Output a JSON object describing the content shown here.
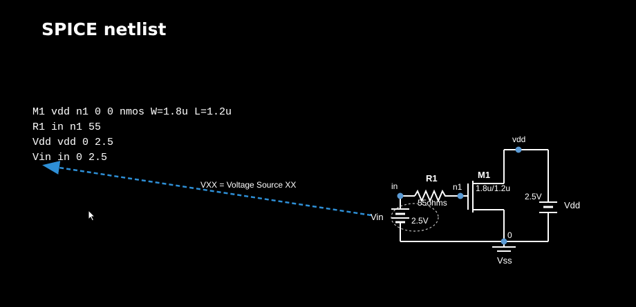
{
  "slide": {
    "title": "SPICE netlist"
  },
  "netlist": {
    "lines": [
      "M1 vdd n1 0 0 nmos W=1.8u L=1.2u",
      "R1 in n1 55",
      "Vdd vdd 0 2.5",
      "Vin in 0 2.5"
    ]
  },
  "annotation": {
    "label": "VXX = Voltage Source XX"
  },
  "circuit": {
    "node_in": "in",
    "node_n1": "n1",
    "node_vdd": "vdd",
    "node_0": "0",
    "r1_name": "R1",
    "r1_value": "55ohms",
    "m1_name": "M1",
    "m1_size": "1.8u/1.2u",
    "vin_name": "Vin",
    "vin_value": "2.5V",
    "vdd_name": "Vdd",
    "vdd_value": "2.5V",
    "vss_name": "Vss"
  },
  "colors": {
    "background": "#000000",
    "text": "#ffffff",
    "wire": "#ffffff",
    "node_dot": "#5b9bd5",
    "arrow": "#2e8fd6"
  }
}
